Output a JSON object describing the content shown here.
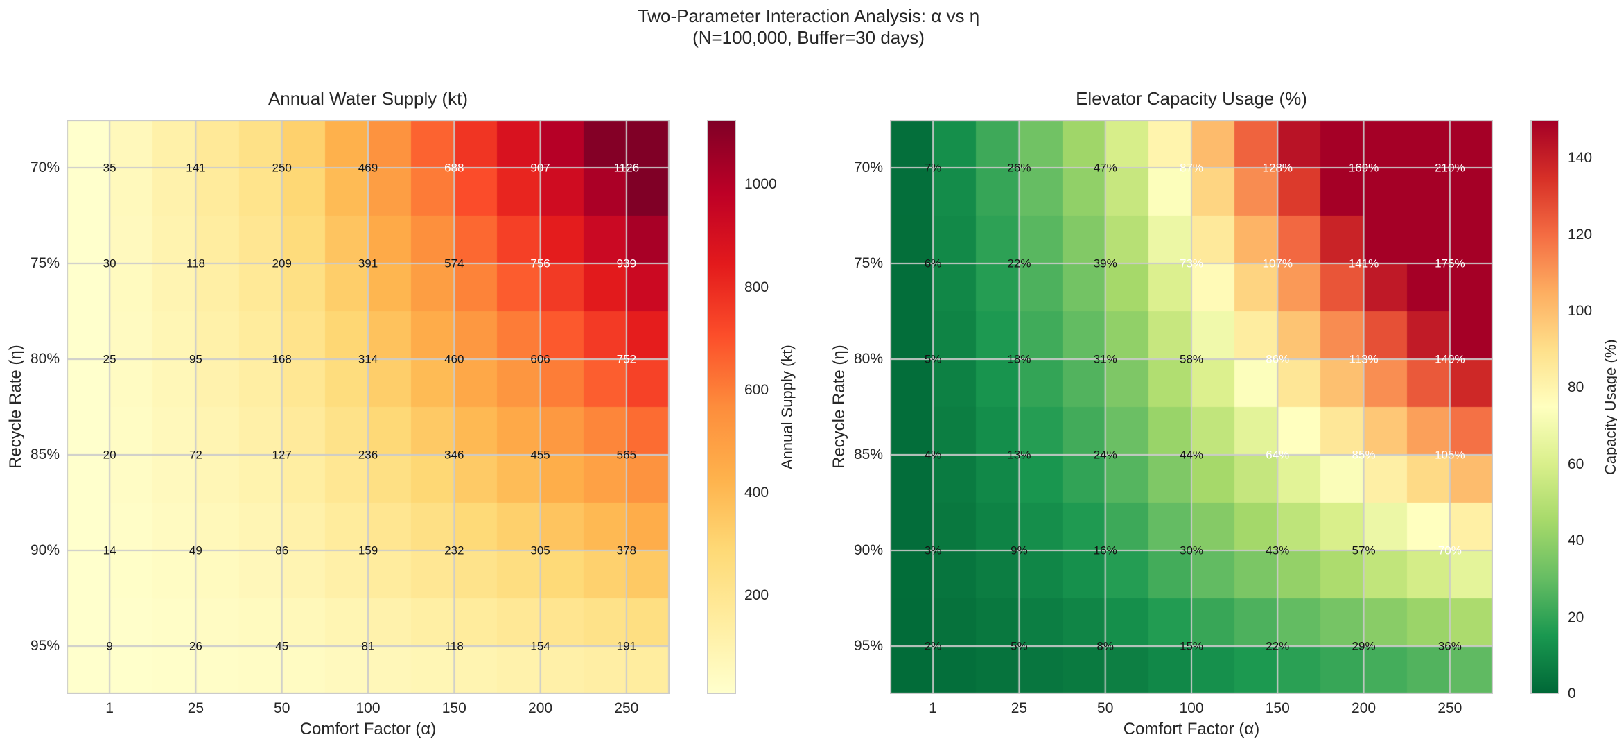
{
  "figure": {
    "suptitle_line1": "Two-Parameter Interaction Analysis: α vs η",
    "suptitle_line2": "(N=100,000, Buffer=30 days)"
  },
  "style": {
    "background": "#ffffff",
    "text_color": "#262626",
    "grid_color": "#cbcbcb",
    "annotation_dark": "#141414",
    "annotation_light": "#ffffff"
  },
  "chart_data": [
    {
      "type": "heatmap",
      "title": "Annual Water Supply (kt)",
      "xlabel": "Comfort Factor (α)",
      "ylabel": "Recycle Rate (η)",
      "x_categories": [
        "1",
        "25",
        "50",
        "100",
        "150",
        "200",
        "250"
      ],
      "y_categories": [
        "70%",
        "75%",
        "80%",
        "85%",
        "90%",
        "95%"
      ],
      "values": [
        [
          35,
          141,
          250,
          469,
          688,
          907,
          1126
        ],
        [
          30,
          118,
          209,
          391,
          574,
          756,
          939
        ],
        [
          25,
          95,
          168,
          314,
          460,
          606,
          752
        ],
        [
          20,
          72,
          127,
          236,
          346,
          455,
          565
        ],
        [
          14,
          49,
          86,
          159,
          232,
          305,
          378
        ],
        [
          9,
          26,
          45,
          81,
          118,
          154,
          191
        ]
      ],
      "value_suffix": "",
      "vmin": 9,
      "vmax": 1126,
      "white_text_threshold": 650,
      "colormap_name": "YlOrRd",
      "colormap": [
        "#ffffcc",
        "#ffeda0",
        "#fed976",
        "#feb24c",
        "#fd8d3c",
        "#fc4e2a",
        "#e31a1c",
        "#bd0026",
        "#800026"
      ],
      "colorbar_label": "Annual Supply (kt)",
      "colorbar_ticks": [
        200,
        400,
        600,
        800,
        1000
      ],
      "grid": true,
      "legend_position": "right-colorbar"
    },
    {
      "type": "heatmap",
      "title": "Elevator Capacity Usage (%)",
      "xlabel": "Comfort Factor (α)",
      "ylabel": "Recycle Rate (η)",
      "x_categories": [
        "1",
        "25",
        "50",
        "100",
        "150",
        "200",
        "250"
      ],
      "y_categories": [
        "70%",
        "75%",
        "80%",
        "85%",
        "90%",
        "95%"
      ],
      "values": [
        [
          7,
          26,
          47,
          87,
          128,
          169,
          210
        ],
        [
          6,
          22,
          39,
          73,
          107,
          141,
          175
        ],
        [
          5,
          18,
          31,
          58,
          86,
          113,
          140
        ],
        [
          4,
          13,
          24,
          44,
          64,
          85,
          105
        ],
        [
          3,
          9,
          16,
          30,
          43,
          57,
          70
        ],
        [
          2,
          5,
          8,
          15,
          22,
          29,
          36
        ]
      ],
      "value_suffix": "%",
      "vmin": 0,
      "vmax": 150,
      "white_text_threshold": 60,
      "colormap_name": "RdYlGn_r",
      "colormap": [
        "#006837",
        "#1a9850",
        "#66bd63",
        "#a6d96a",
        "#d9ef8b",
        "#ffffbf",
        "#fee08b",
        "#fdae61",
        "#f46d43",
        "#d73027",
        "#a50026"
      ],
      "colorbar_label": "Capacity Usage (%)",
      "colorbar_ticks": [
        0,
        20,
        40,
        60,
        80,
        100,
        120,
        140
      ],
      "grid": true,
      "legend_position": "right-colorbar"
    }
  ]
}
